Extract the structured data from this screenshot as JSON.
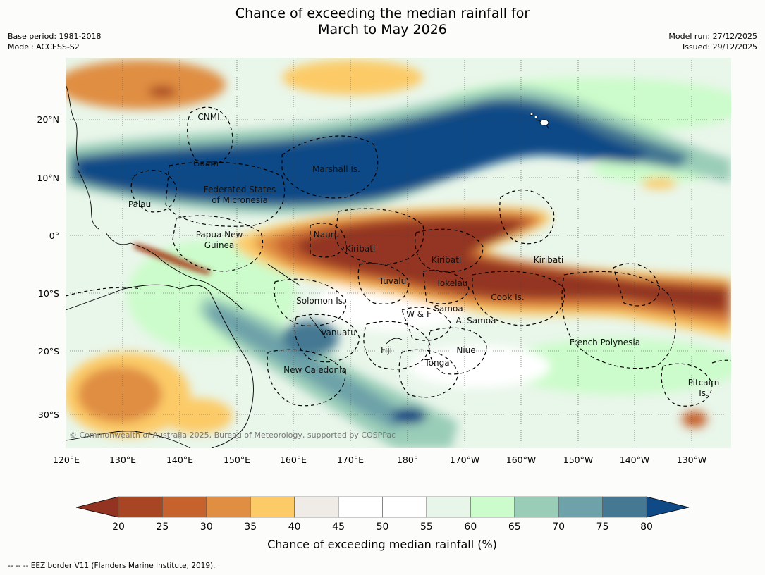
{
  "title_line1": "Chance of exceeding the median rainfall for",
  "title_line2": "March to May 2026",
  "base_period": "Base period: 1981-2018",
  "model": "Model: ACCESS-S2",
  "model_run": "Model run: 27/12/2025",
  "issued": "Issued: 29/12/2025",
  "credit": "© Commonwealth of Australia 2025, Bureau of Meteorology, supported by COSPPac",
  "footnote": "--  --  -- EEZ border V11 (Flanders Marine Institute, 2019).",
  "lat_ticks": [
    "20°N",
    "10°N",
    "0°",
    "10°S",
    "20°S",
    "30°S"
  ],
  "lon_ticks": [
    "120°E",
    "130°E",
    "140°E",
    "150°E",
    "160°E",
    "170°E",
    "180°",
    "170°W",
    "160°W",
    "150°W",
    "140°W",
    "130°W"
  ],
  "regions": [
    {
      "name": "CNMI"
    },
    {
      "name": "Guam"
    },
    {
      "name": "Marshall Is."
    },
    {
      "name": "Federated States"
    },
    {
      "name": "of Micronesia"
    },
    {
      "name": "Palau"
    },
    {
      "name": "Papua New"
    },
    {
      "name": "Guinea"
    },
    {
      "name": "Nauru"
    },
    {
      "name": "Kiribati"
    },
    {
      "name": "Kiribati"
    },
    {
      "name": "Kiribati"
    },
    {
      "name": "Tuvalu"
    },
    {
      "name": "Tokelau"
    },
    {
      "name": "Cook Is."
    },
    {
      "name": "Solomon Is."
    },
    {
      "name": "Samoa"
    },
    {
      "name": "W & F"
    },
    {
      "name": "A. Samoa"
    },
    {
      "name": "Vanuatu"
    },
    {
      "name": "Fiji"
    },
    {
      "name": "Niue"
    },
    {
      "name": "Tonga"
    },
    {
      "name": "French Polynesia"
    },
    {
      "name": "New Caledonia"
    },
    {
      "name": "Pitcairn"
    },
    {
      "name": "Is."
    }
  ],
  "colorbar": {
    "title": "Chance of exceeding median rainfall (%)",
    "labels": [
      "20",
      "25",
      "30",
      "35",
      "40",
      "45",
      "50",
      "55",
      "60",
      "65",
      "70",
      "75",
      "80"
    ],
    "colors": [
      "#a84624",
      "#c6622e",
      "#e08e42",
      "#fccb68",
      "#efece7",
      "#ffffff",
      "#ffffff",
      "#e8f6e9",
      "#ccfccb",
      "#9acdb8",
      "#6da2a9",
      "#457893"
    ],
    "under_color": "#933423",
    "over_color": "#0f4a86"
  }
}
